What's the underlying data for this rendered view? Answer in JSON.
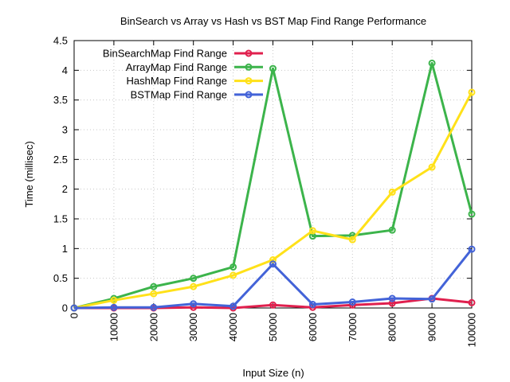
{
  "chart_data": {
    "type": "line",
    "title": "BinSearch vs Array vs Hash vs BST Map Find Range Performance",
    "xlabel": "Input Size (n)",
    "ylabel": "Time (millisec)",
    "x": [
      0,
      10000,
      20000,
      30000,
      40000,
      50000,
      60000,
      70000,
      80000,
      90000,
      100000
    ],
    "xlim": [
      0,
      100000
    ],
    "ylim": [
      0,
      4.5
    ],
    "xticks": [
      "0",
      "10000",
      "20000",
      "30000",
      "40000",
      "50000",
      "60000",
      "70000",
      "80000",
      "90000",
      "100000"
    ],
    "yticks": [
      "0",
      "0.5",
      "1",
      "1.5",
      "2",
      "2.5",
      "3",
      "3.5",
      "4",
      "4.5"
    ],
    "grid": true,
    "legend_position": "top-left",
    "series": [
      {
        "name": "BinSearchMap Find Range",
        "color": "#e0204e",
        "values": [
          0,
          0.0,
          0.0,
          0.01,
          0.0,
          0.05,
          0.01,
          0.05,
          0.08,
          0.16,
          0.09
        ]
      },
      {
        "name": "ArrayMap Find Range",
        "color": "#3cb44b",
        "values": [
          0,
          0.16,
          0.36,
          0.5,
          0.69,
          4.03,
          1.21,
          1.22,
          1.31,
          4.12,
          1.58
        ]
      },
      {
        "name": "HashMap Find Range",
        "color": "#ffe119",
        "values": [
          0,
          0.13,
          0.24,
          0.36,
          0.55,
          0.81,
          1.3,
          1.15,
          1.95,
          2.37,
          3.63
        ]
      },
      {
        "name": "BSTMap Find Range",
        "color": "#4363d8",
        "values": [
          0,
          0.01,
          0.01,
          0.07,
          0.03,
          0.74,
          0.06,
          0.1,
          0.16,
          0.15,
          0.99
        ]
      }
    ]
  }
}
